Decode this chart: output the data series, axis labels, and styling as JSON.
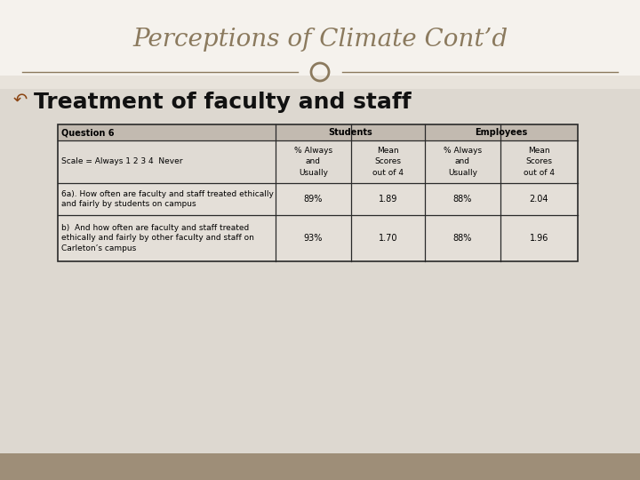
{
  "title": "Perceptions of Climate Cont’d",
  "subtitle": "Treatment of faculty and staff",
  "subtitle_bullet": "↶",
  "title_color": "#8b7355",
  "bg_white": "#f5f2ed",
  "bg_gray": "#ddd8d0",
  "bg_footer": "#9e8e78",
  "divider_color": "#8b7355",
  "circle_color": "#8b7355",
  "table_bg_header1": "#c8c0b4",
  "table_bg_header2": "#e8e4de",
  "table_bg_data": "#e8e4de",
  "table_border": "#1a1a1a",
  "col_headers_row1": [
    "Question 6",
    "Students",
    "Employees"
  ],
  "col_headers_row2": [
    "Scale = Always 1 2 3 4  Never",
    "% Always\nand\nUsually",
    "Mean\nScores\nout of 4",
    "% Always\nand\nUsually",
    "Mean\nScores\nout of 4"
  ],
  "data_rows": [
    [
      "6a). How often are faculty and staff treated ethically\nand fairly by students on campus",
      "89%",
      "1.89",
      "88%",
      "2.04"
    ],
    [
      "b)  And how often are faculty and staff treated\nethically and fairly by other faculty and staff on\nCarleton’s campus",
      "93%",
      "1.70",
      "88%",
      "1.96"
    ]
  ]
}
